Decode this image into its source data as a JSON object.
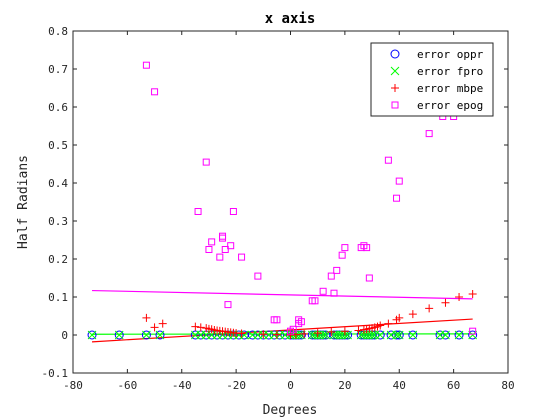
{
  "chart_data": {
    "type": "scatter",
    "title": "x axis",
    "xlabel": "Degrees",
    "ylabel": "Half Radians",
    "xlim": [
      -80,
      80
    ],
    "ylim": [
      -0.1,
      0.8
    ],
    "xticks": [
      -80,
      -60,
      -40,
      -20,
      0,
      20,
      40,
      60,
      80
    ],
    "yticks": [
      -0.1,
      0,
      0.1,
      0.2,
      0.3,
      0.4,
      0.5,
      0.6,
      0.7,
      0.8
    ],
    "xtick_labels": [
      "-80",
      "-60",
      "-40",
      "-20",
      "0",
      "20",
      "40",
      "60",
      "80"
    ],
    "ytick_labels": [
      "-0.1",
      "0",
      "0.1",
      "0.2",
      "0.3",
      "0.4",
      "0.5",
      "0.6",
      "0.7",
      "0.8"
    ],
    "legend_position": "top-right",
    "grid": false,
    "series": [
      {
        "name": "error oppr",
        "marker": "circle",
        "color": "#0000ff",
        "x": [
          -73,
          -63,
          -53,
          -48,
          -35,
          -33,
          -31,
          -29,
          -27,
          -25,
          -23,
          -21,
          -19,
          -17,
          -14,
          -12,
          -10,
          -8,
          -6,
          -4,
          -2,
          0,
          1,
          2,
          3,
          4,
          8,
          9,
          10,
          11,
          12,
          13,
          16,
          17,
          18,
          19,
          20,
          21,
          26,
          27,
          28,
          29,
          30,
          31,
          33,
          37,
          39,
          40,
          45,
          55,
          57,
          62,
          67
        ],
        "y": [
          0,
          0,
          0,
          0,
          0,
          0,
          0,
          0,
          0,
          0,
          0,
          0,
          0,
          0,
          0,
          0,
          0,
          0,
          0,
          0,
          0,
          0,
          0,
          0,
          0,
          0,
          0,
          0,
          0,
          0,
          0,
          0,
          0,
          0,
          0,
          0,
          0,
          0,
          0,
          0,
          0,
          0,
          0,
          0,
          0,
          0,
          0,
          0,
          0,
          0,
          0,
          0,
          0
        ]
      },
      {
        "name": "error fpro",
        "marker": "x",
        "color": "#00ff00",
        "x": [
          -73,
          -63,
          -53,
          -48,
          -35,
          -33,
          -31,
          -29,
          -27,
          -25,
          -23,
          -21,
          -19,
          -17,
          -14,
          -12,
          -10,
          -8,
          -6,
          -4,
          -2,
          0,
          1,
          2,
          3,
          4,
          8,
          9,
          10,
          11,
          12,
          13,
          16,
          17,
          18,
          19,
          20,
          21,
          26,
          27,
          28,
          29,
          30,
          31,
          33,
          37,
          39,
          40,
          45,
          55,
          57,
          62,
          67
        ],
        "y": [
          0,
          0,
          0,
          0,
          0,
          0,
          0,
          0,
          0,
          0,
          0,
          0,
          0,
          0,
          0,
          0,
          0,
          0,
          0,
          0,
          0,
          0,
          0,
          0,
          0,
          0,
          0,
          0,
          0,
          0,
          0,
          0,
          0,
          0,
          0,
          0,
          0,
          0,
          0,
          0,
          0,
          0,
          0,
          0,
          0,
          0,
          0,
          0,
          0,
          0,
          0,
          0,
          0
        ]
      },
      {
        "name": "error mbpe",
        "marker": "plus",
        "color": "#ff0000",
        "x": [
          -53,
          -50,
          -47,
          -35,
          -33,
          -31,
          -30,
          -29,
          -28,
          -27,
          -26,
          -25,
          -24,
          -23,
          -22,
          -21,
          -20,
          -18,
          -10,
          -5,
          0,
          2,
          5,
          10,
          15,
          20,
          25,
          27,
          28,
          29,
          30,
          31,
          32,
          33,
          36,
          39,
          40,
          45,
          51,
          57,
          62,
          67
        ],
        "y": [
          0.045,
          0.02,
          0.03,
          0.022,
          0.02,
          0.018,
          0.016,
          0.015,
          0.013,
          0.012,
          0.011,
          0.01,
          0.009,
          0.008,
          0.007,
          0.006,
          0.005,
          0.004,
          0.002,
          0.001,
          0.0,
          0.001,
          0.003,
          0.005,
          0.008,
          0.01,
          0.012,
          0.014,
          0.015,
          0.017,
          0.018,
          0.02,
          0.022,
          0.025,
          0.03,
          0.04,
          0.045,
          0.055,
          0.07,
          0.085,
          0.1,
          0.108
        ]
      },
      {
        "name": "error epog",
        "marker": "square",
        "color": "#ff00ff",
        "x": [
          -53,
          -50,
          -34,
          -31,
          -30,
          -29,
          -26,
          -25,
          -25,
          -24,
          -23,
          -22,
          -21,
          -18,
          -12,
          -6,
          -5,
          0,
          1,
          3,
          3,
          4,
          8,
          9,
          12,
          15,
          16,
          17,
          19,
          20,
          26,
          27,
          28,
          29,
          36,
          39,
          40,
          51,
          56,
          60,
          67
        ],
        "y": [
          0.71,
          0.64,
          0.325,
          0.455,
          0.225,
          0.245,
          0.205,
          0.26,
          0.255,
          0.225,
          0.08,
          0.235,
          0.325,
          0.205,
          0.155,
          0.04,
          0.04,
          0.01,
          0.015,
          0.03,
          0.04,
          0.035,
          0.09,
          0.09,
          0.115,
          0.155,
          0.11,
          0.17,
          0.21,
          0.23,
          0.23,
          0.235,
          0.23,
          0.15,
          0.46,
          0.36,
          0.405,
          0.53,
          0.575,
          0.575,
          0.01
        ]
      }
    ],
    "fit_lines": [
      {
        "series": "error mbpe",
        "color": "#ff0000",
        "x": [
          -73,
          67
        ],
        "y": [
          -0.018,
          0.042
        ]
      },
      {
        "series": "error fpro",
        "color": "#00ff00",
        "x": [
          -73,
          67
        ],
        "y": [
          0.002,
          0.003
        ]
      },
      {
        "series": "error epog",
        "color": "#ff00ff",
        "x": [
          -73,
          67
        ],
        "y": [
          0.117,
          0.095
        ]
      }
    ]
  }
}
